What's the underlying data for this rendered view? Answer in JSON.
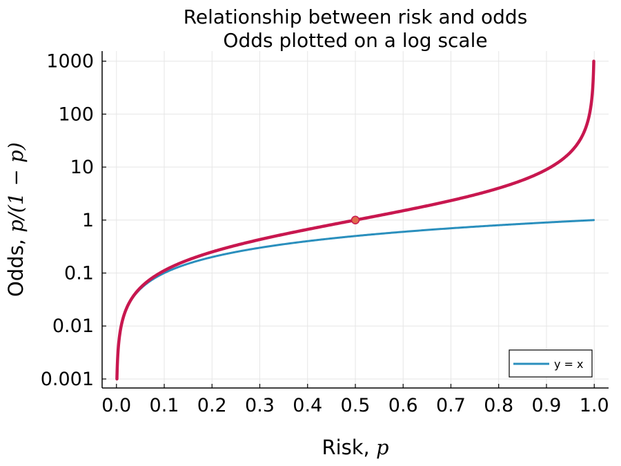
{
  "chart_data": {
    "type": "line",
    "title": "Relationship between risk and odds",
    "subtitle": "Odds plotted on a log scale",
    "xlabel_text": "Risk, ",
    "xlabel_math": "p",
    "ylabel_text": "Odds, ",
    "ylabel_math": "p/(1 − p)",
    "xlim": [
      -0.03,
      1.03
    ],
    "ylim_log10": [
      -3.17,
      3.19
    ],
    "yscale": "log",
    "grid": true,
    "x_ticks": [
      0.0,
      0.1,
      0.2,
      0.3,
      0.4,
      0.5,
      0.6,
      0.7,
      0.8,
      0.9,
      1.0
    ],
    "x_tick_labels": [
      "0.0",
      "0.1",
      "0.2",
      "0.3",
      "0.4",
      "0.5",
      "0.6",
      "0.7",
      "0.8",
      "0.9",
      "1.0"
    ],
    "y_ticks": [
      0.001,
      0.01,
      0.1,
      1,
      10,
      100,
      1000
    ],
    "y_tick_labels": [
      "0.001",
      "0.01",
      "0.1",
      "1",
      "10",
      "100",
      "1000"
    ],
    "series": [
      {
        "name": "odds",
        "function": "p/(1-p)",
        "x_range": [
          0.001,
          0.999
        ],
        "color": "#c8174f",
        "legend": false
      },
      {
        "name": "y = x",
        "function": "p",
        "x_range": [
          0.001,
          0.999
        ],
        "color": "#2a8fbd",
        "legend": true
      }
    ],
    "highlight_point": {
      "x": 0.5,
      "y": 1,
      "fill": "#e06b4c",
      "stroke": "#c8174f"
    },
    "legend": {
      "position": "bottom-right",
      "entries": [
        "y = x"
      ]
    }
  }
}
